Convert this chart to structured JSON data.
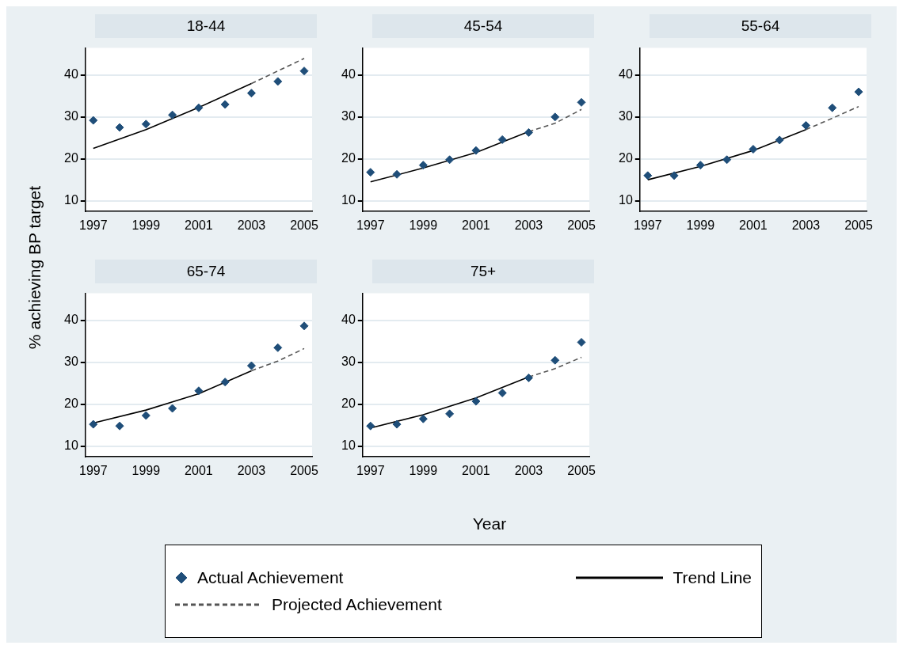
{
  "chart_data": [
    {
      "type": "scatter",
      "title": "18-44",
      "ylabel": "% achieving BP target",
      "legend": "bottom",
      "xlim": [
        1996.7,
        2005.3
      ],
      "xticks": [
        1997,
        1999,
        2001,
        2003,
        2005
      ],
      "ylim": [
        7.5,
        46.5
      ],
      "yticks": [
        10,
        20,
        30,
        40
      ],
      "grid": "y",
      "x": [
        1997,
        1998,
        1999,
        2000,
        2001,
        2002,
        2003,
        2004,
        2005
      ],
      "series": [
        {
          "name": "Actual Achievement",
          "type": "scatter",
          "marker": "diamond",
          "color": "#1f4e79",
          "values": [
            29.2,
            27.5,
            28.3,
            30.5,
            32.2,
            33,
            35.7,
            38.5,
            41
          ]
        },
        {
          "name": "Trend Line",
          "type": "line",
          "line_style": "solid",
          "color": "#000000",
          "x": [
            1997,
            1999,
            2001,
            2003
          ],
          "values": [
            22.5,
            27,
            32.3,
            38
          ]
        },
        {
          "name": "Projected Achievement",
          "type": "line",
          "line_style": "dashed",
          "color": "#555555",
          "x": [
            2003,
            2004,
            2005
          ],
          "values": [
            38,
            41,
            44
          ]
        }
      ]
    },
    {
      "type": "scatter",
      "title": "45-54",
      "xlim": [
        1996.7,
        2005.3
      ],
      "xticks": [
        1997,
        1999,
        2001,
        2003,
        2005
      ],
      "ylim": [
        7.5,
        46.5
      ],
      "yticks": [
        10,
        20,
        30,
        40
      ],
      "grid": "y",
      "x": [
        1997,
        1998,
        1999,
        2000,
        2001,
        2002,
        2003,
        2004,
        2005
      ],
      "series": [
        {
          "type": "scatter",
          "marker": "diamond",
          "color": "#1f4e79",
          "values": [
            16.8,
            16.3,
            18.5,
            19.8,
            22,
            24.6,
            26.3,
            30,
            33.5
          ]
        },
        {
          "type": "line",
          "line_style": "solid",
          "color": "#000000",
          "x": [
            1997,
            1999,
            2001,
            2003
          ],
          "values": [
            14.5,
            17.8,
            21.5,
            26.5
          ]
        },
        {
          "type": "line",
          "line_style": "dashed",
          "color": "#555555",
          "x": [
            2003,
            2004,
            2005
          ],
          "values": [
            26.5,
            28.5,
            31.8
          ]
        }
      ]
    },
    {
      "type": "scatter",
      "title": "55-64",
      "xlim": [
        1996.7,
        2005.3
      ],
      "xticks": [
        1997,
        1999,
        2001,
        2003,
        2005
      ],
      "ylim": [
        7.5,
        46.5
      ],
      "yticks": [
        10,
        20,
        30,
        40
      ],
      "grid": "y",
      "x": [
        1997,
        1998,
        1999,
        2000,
        2001,
        2002,
        2003,
        2004,
        2005
      ],
      "series": [
        {
          "type": "scatter",
          "marker": "diamond",
          "color": "#1f4e79",
          "values": [
            16,
            16,
            18.5,
            19.8,
            22.3,
            24.5,
            28,
            32.2,
            36
          ]
        },
        {
          "type": "line",
          "line_style": "solid",
          "color": "#000000",
          "x": [
            1997,
            1999,
            2001,
            2003
          ],
          "values": [
            15,
            18.2,
            22,
            27
          ]
        },
        {
          "type": "line",
          "line_style": "dashed",
          "color": "#555555",
          "x": [
            2003,
            2004,
            2005
          ],
          "values": [
            27,
            29.7,
            32.5
          ]
        }
      ]
    },
    {
      "type": "scatter",
      "title": "65-74",
      "xlim": [
        1996.7,
        2005.3
      ],
      "xticks": [
        1997,
        1999,
        2001,
        2003,
        2005
      ],
      "ylim": [
        7.5,
        46.5
      ],
      "yticks": [
        10,
        20,
        30,
        40
      ],
      "grid": "y",
      "x": [
        1997,
        1998,
        1999,
        2000,
        2001,
        2002,
        2003,
        2004,
        2005
      ],
      "series": [
        {
          "type": "scatter",
          "marker": "diamond",
          "color": "#1f4e79",
          "values": [
            15.2,
            14.8,
            17.3,
            19,
            23.2,
            25.3,
            29.2,
            33.5,
            38.7
          ]
        },
        {
          "type": "line",
          "line_style": "solid",
          "color": "#000000",
          "x": [
            1997,
            1999,
            2001,
            2003
          ],
          "values": [
            15.5,
            18.6,
            22.5,
            28
          ]
        },
        {
          "type": "line",
          "line_style": "dashed",
          "color": "#555555",
          "x": [
            2003,
            2004,
            2005
          ],
          "values": [
            28,
            30.3,
            33.3
          ]
        }
      ]
    },
    {
      "type": "scatter",
      "title": "75+",
      "xlabel": "Year",
      "xlim": [
        1996.7,
        2005.3
      ],
      "xticks": [
        1997,
        1999,
        2001,
        2003,
        2005
      ],
      "ylim": [
        7.5,
        46.5
      ],
      "yticks": [
        10,
        20,
        30,
        40
      ],
      "grid": "y",
      "x": [
        1997,
        1998,
        1999,
        2000,
        2001,
        2002,
        2003,
        2004,
        2005
      ],
      "series": [
        {
          "type": "scatter",
          "marker": "diamond",
          "color": "#1f4e79",
          "values": [
            14.8,
            15.2,
            16.5,
            17.7,
            20.7,
            22.7,
            26.3,
            30.5,
            34.8
          ]
        },
        {
          "type": "line",
          "line_style": "solid",
          "color": "#000000",
          "x": [
            1997,
            1999,
            2001,
            2003
          ],
          "values": [
            14.3,
            17.5,
            21.5,
            26.5
          ]
        },
        {
          "type": "line",
          "line_style": "dashed",
          "color": "#555555",
          "x": [
            2003,
            2004,
            2005
          ],
          "values": [
            26.5,
            28.5,
            31.2
          ]
        }
      ]
    }
  ]
}
